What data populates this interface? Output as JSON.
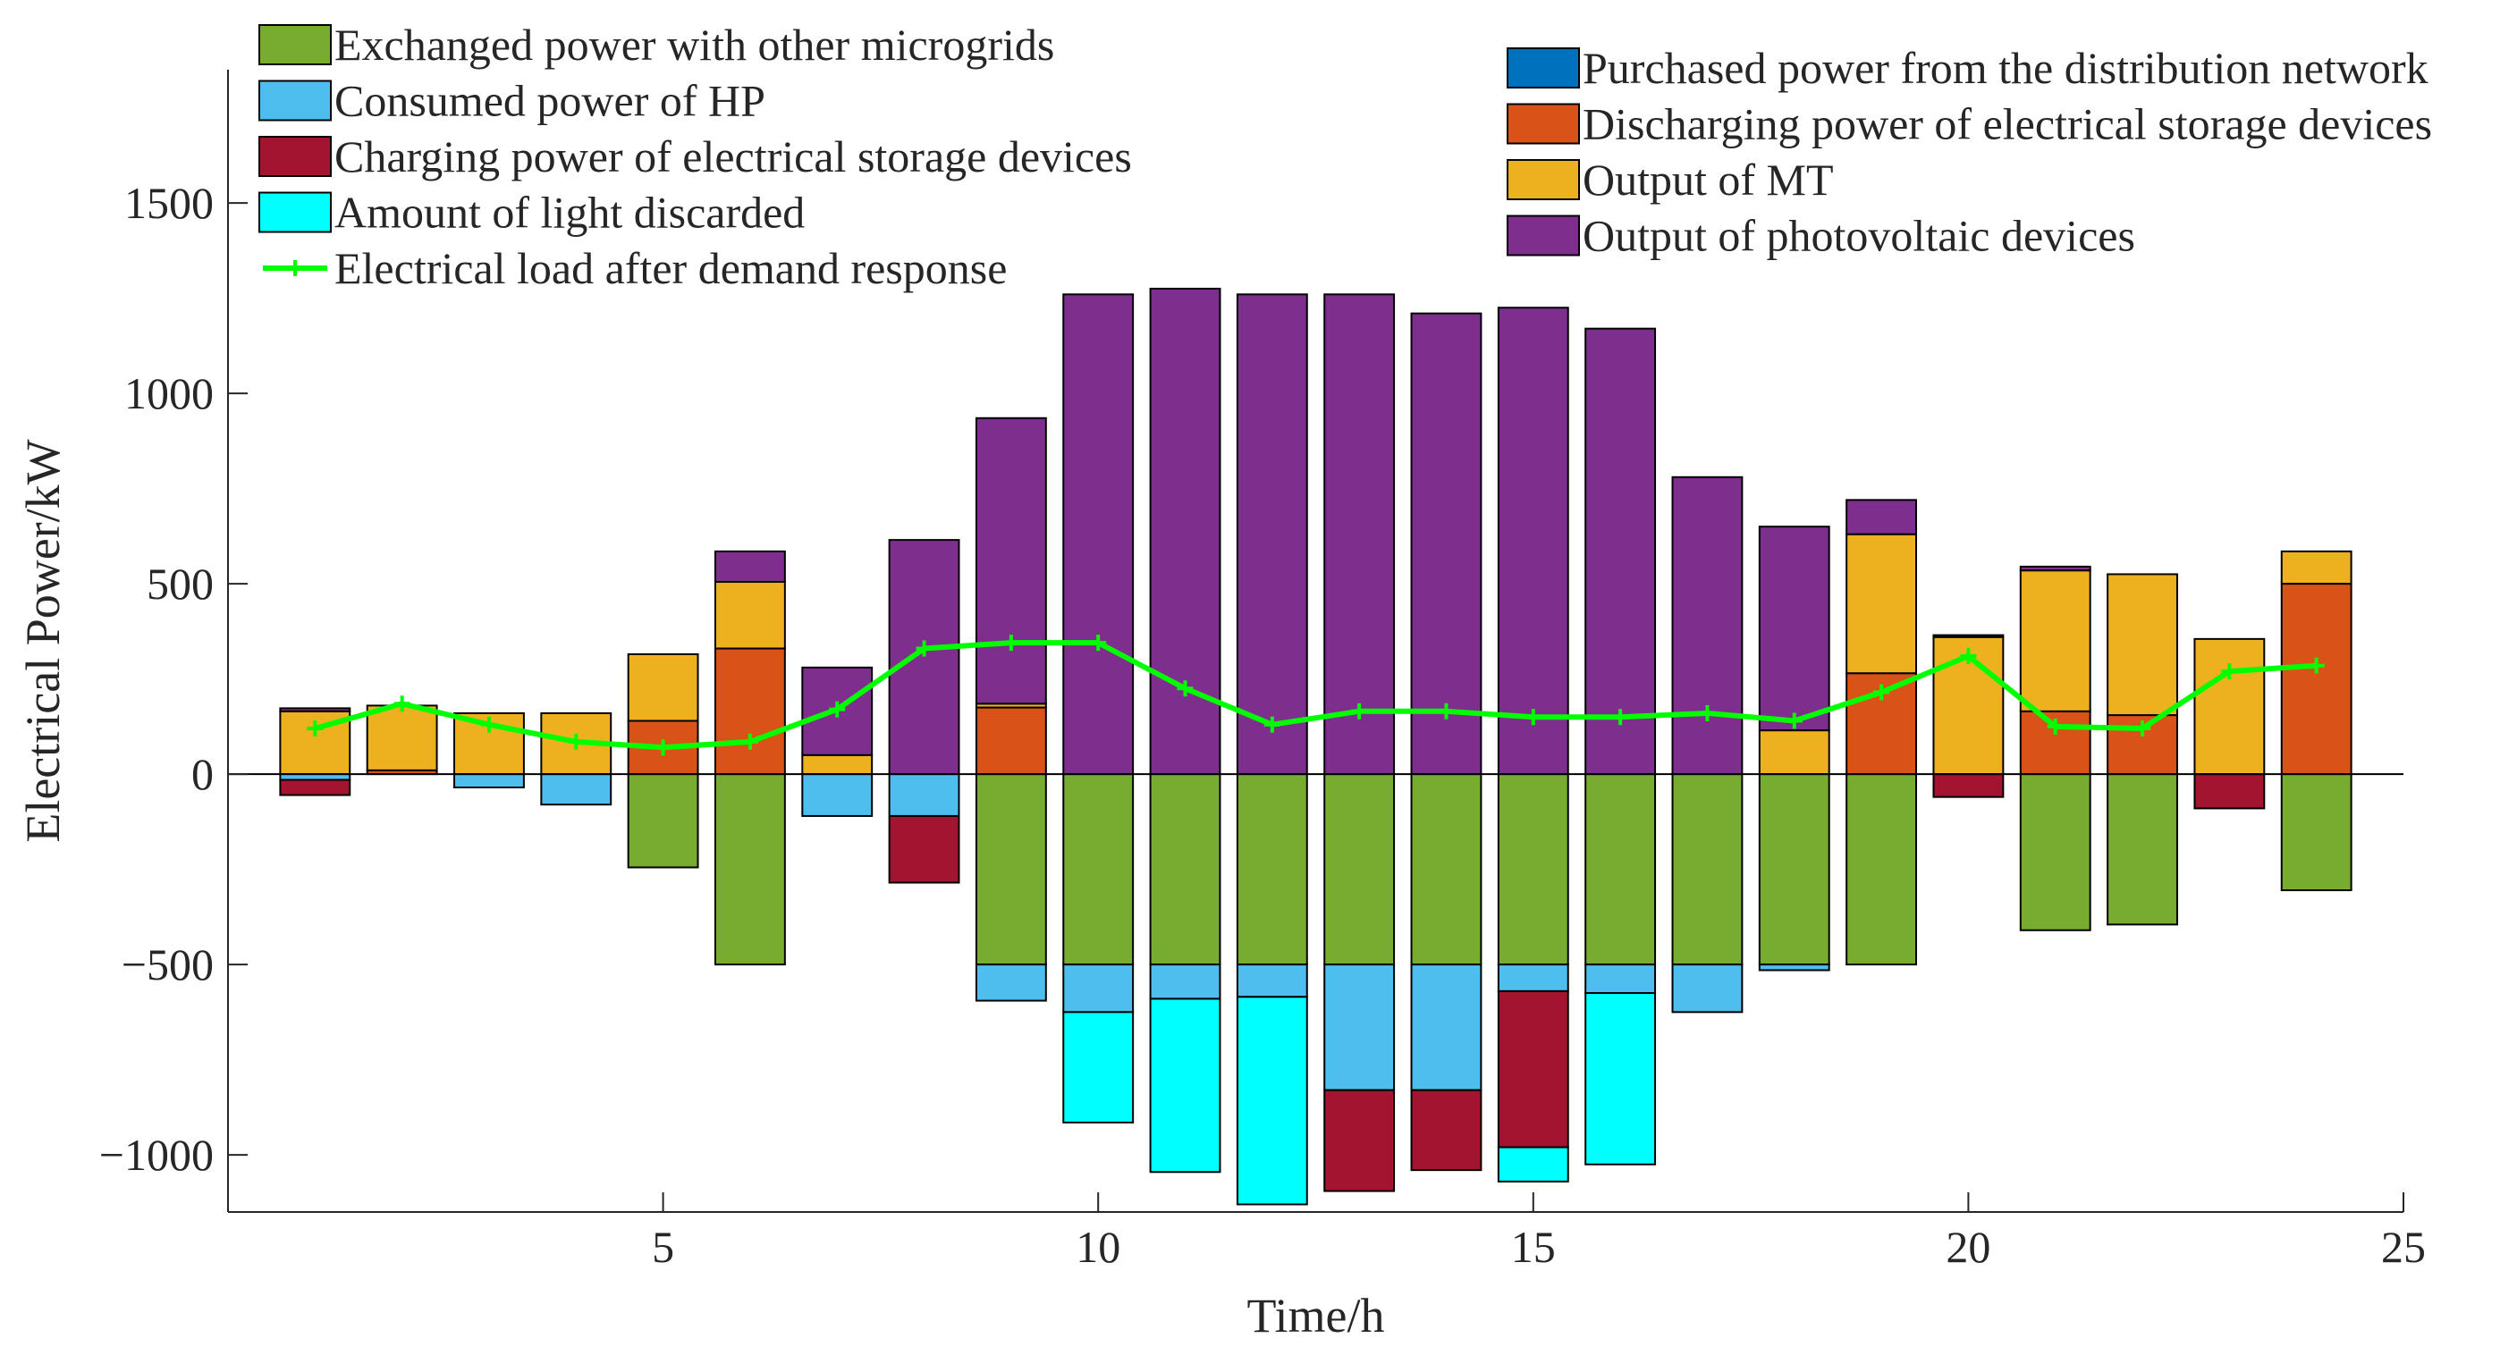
{
  "chart_data": {
    "type": "bar",
    "stacked": true,
    "xlabel": "Time/h",
    "ylabel": "Electrical Power/kW",
    "xlim": [
      0,
      25
    ],
    "ylim": [
      -1150,
      1850
    ],
    "xticks": [
      5,
      10,
      15,
      20,
      25
    ],
    "yticks": [
      -1000,
      -500,
      0,
      500,
      1000,
      1500
    ],
    "ytick_labels": [
      "−1000",
      "−500",
      "0",
      "500",
      "1000",
      "1500"
    ],
    "categories": [
      1,
      2,
      3,
      4,
      5,
      6,
      7,
      8,
      9,
      10,
      11,
      12,
      13,
      14,
      15,
      16,
      17,
      18,
      19,
      20,
      21,
      22,
      23,
      24
    ],
    "positive_series": [
      {
        "name": "Purchased power from the distribution network",
        "color": "#0072BD",
        "values": [
          0,
          0,
          0,
          0,
          0,
          0,
          0,
          0,
          0,
          0,
          0,
          0,
          0,
          0,
          0,
          0,
          0,
          0,
          0,
          0,
          0,
          0,
          0,
          0
        ]
      },
      {
        "name": "Discharging power of electrical storage devices",
        "color": "#D95319",
        "values": [
          0,
          10,
          0,
          0,
          140,
          330,
          0,
          0,
          175,
          0,
          0,
          0,
          0,
          0,
          0,
          0,
          0,
          0,
          265,
          0,
          165,
          155,
          0,
          500
        ]
      },
      {
        "name": "Output of MT",
        "color": "#EDB120",
        "values": [
          165,
          170,
          160,
          160,
          175,
          175,
          50,
          0,
          10,
          0,
          0,
          0,
          0,
          0,
          0,
          0,
          0,
          115,
          365,
          360,
          370,
          370,
          355,
          85
        ]
      },
      {
        "name": "Output of photovoltaic devices",
        "color": "#7E2F8E",
        "values": [
          8,
          0,
          0,
          0,
          0,
          80,
          230,
          615,
          750,
          1260,
          1275,
          1260,
          1260,
          1210,
          1225,
          1170,
          780,
          535,
          90,
          5,
          10,
          0,
          0,
          0
        ]
      }
    ],
    "negative_series": [
      {
        "name": "Exchanged power with other microgrids",
        "color": "#77AC30",
        "values": [
          0,
          0,
          0,
          0,
          -245,
          -500,
          0,
          0,
          -500,
          -500,
          -500,
          -500,
          -500,
          -500,
          -500,
          -500,
          -500,
          -500,
          -500,
          0,
          -410,
          -395,
          0,
          -305
        ]
      },
      {
        "name": "Consumed power of HP",
        "color": "#4DBEEE",
        "values": [
          -15,
          0,
          -35,
          -80,
          0,
          0,
          -110,
          -110,
          -95,
          -125,
          -90,
          -85,
          -330,
          -330,
          -70,
          -75,
          -125,
          -15,
          0,
          0,
          0,
          0,
          0,
          0
        ]
      },
      {
        "name": "Charging power of electrical storage devices",
        "color": "#A2142F",
        "values": [
          -40,
          0,
          0,
          0,
          0,
          0,
          0,
          -175,
          0,
          0,
          0,
          0,
          -265,
          -210,
          -410,
          0,
          0,
          0,
          0,
          -60,
          0,
          0,
          -90,
          0
        ]
      },
      {
        "name": "Amount of light discarded",
        "color": "#00FFFF",
        "values": [
          0,
          0,
          0,
          0,
          0,
          0,
          0,
          0,
          0,
          -290,
          -455,
          -545,
          0,
          0,
          -90,
          -450,
          0,
          0,
          0,
          0,
          0,
          0,
          0,
          0
        ]
      }
    ],
    "line_series": {
      "name": "Electrical load after demand response",
      "color": "#00FF00",
      "values": [
        120,
        185,
        130,
        85,
        70,
        85,
        170,
        330,
        345,
        345,
        225,
        130,
        165,
        165,
        150,
        150,
        160,
        140,
        215,
        310,
        125,
        120,
        270,
        285
      ]
    },
    "legend_left": [
      "Exchanged power with other microgrids",
      "Consumed power of HP",
      "Charging power of electrical storage devices",
      "Amount of light discarded",
      "Electrical load after demand response"
    ],
    "legend_right": [
      "Purchased power from the distribution network",
      "Discharging power of electrical storage devices",
      "Output of MT",
      "Output of photovoltaic devices"
    ],
    "legend_placement": "top-left and top-right",
    "grid": false
  }
}
